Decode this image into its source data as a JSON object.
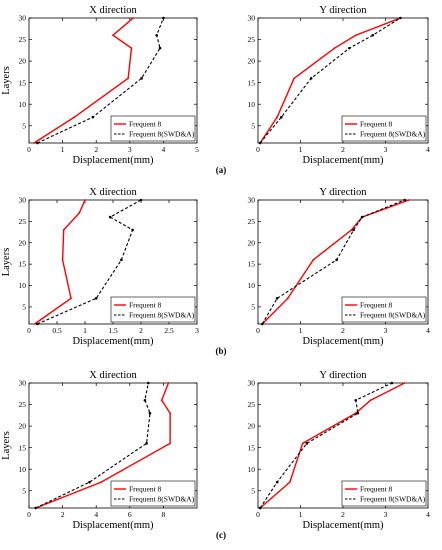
{
  "figure": {
    "row_labels": [
      "(a)",
      "(b)",
      "(c)"
    ]
  },
  "chart_data": [
    {
      "type": "line",
      "row": 0,
      "col": 0,
      "title": "X direction",
      "xlabel": "Displacement(mm)",
      "ylabel": "Layers",
      "xlim": [
        0,
        5
      ],
      "ylim": [
        1,
        30
      ],
      "xticks": [
        0,
        1,
        2,
        3,
        4,
        5
      ],
      "yticks": [
        5,
        10,
        15,
        20,
        25,
        30
      ],
      "legend_position": "bottom-right",
      "series": [
        {
          "name": "Frequent 8",
          "color": "#ff0000",
          "dashed": false,
          "x": [
            0.15,
            1.35,
            2.95,
            3.05,
            2.5,
            3.1
          ],
          "y": [
            1,
            7,
            16,
            23,
            26,
            30
          ]
        },
        {
          "name": "Frequent 8(SWD&A)",
          "color": "#000000",
          "dashed": true,
          "x": [
            0.25,
            1.9,
            3.35,
            3.9,
            3.8,
            4.0
          ],
          "y": [
            1,
            7,
            16,
            23,
            26,
            30
          ]
        }
      ]
    },
    {
      "type": "line",
      "row": 0,
      "col": 1,
      "title": "Y direction",
      "xlabel": "Displacement(mm)",
      "ylabel": "",
      "xlim": [
        0,
        4
      ],
      "ylim": [
        1,
        30
      ],
      "xticks": [
        0,
        1,
        2,
        3,
        4
      ],
      "yticks": [
        5,
        10,
        15,
        20,
        25,
        30
      ],
      "legend_position": "bottom-right",
      "series": [
        {
          "name": "Frequent 8",
          "color": "#ff0000",
          "dashed": false,
          "x": [
            0.05,
            0.45,
            0.85,
            1.8,
            2.3,
            3.35
          ],
          "y": [
            1,
            7,
            16,
            23,
            26,
            30
          ]
        },
        {
          "name": "Frequent 8(SWD&A)",
          "color": "#000000",
          "dashed": true,
          "x": [
            0.05,
            0.55,
            1.25,
            2.15,
            2.7,
            3.35
          ],
          "y": [
            1,
            7,
            16,
            23,
            26,
            30
          ]
        }
      ]
    },
    {
      "type": "line",
      "row": 1,
      "col": 0,
      "title": "X direction",
      "xlabel": "Displacement(mm)",
      "ylabel": "Layers",
      "xlim": [
        0,
        3
      ],
      "ylim": [
        1,
        30
      ],
      "xticks": [
        0,
        0.5,
        1,
        1.5,
        2,
        2.5,
        3
      ],
      "yticks": [
        5,
        10,
        15,
        20,
        25,
        30
      ],
      "legend_position": "bottom-right",
      "series": [
        {
          "name": "Frequent 8",
          "color": "#ff0000",
          "dashed": false,
          "x": [
            0.1,
            0.75,
            0.6,
            0.62,
            0.9,
            1.0
          ],
          "y": [
            1,
            7,
            16,
            23,
            27,
            30
          ]
        },
        {
          "name": "Frequent 8(SWD&A)",
          "color": "#000000",
          "dashed": true,
          "x": [
            0.15,
            1.2,
            1.65,
            1.85,
            1.45,
            2.0
          ],
          "y": [
            1,
            7,
            16,
            23,
            26,
            30
          ]
        }
      ]
    },
    {
      "type": "line",
      "row": 1,
      "col": 1,
      "title": "Y direction",
      "xlabel": "Displacement(mm)",
      "ylabel": "",
      "xlim": [
        0,
        4
      ],
      "ylim": [
        1,
        30
      ],
      "xticks": [
        0,
        1,
        2,
        3,
        4
      ],
      "yticks": [
        5,
        10,
        15,
        20,
        25,
        30
      ],
      "legend_position": "bottom-right",
      "series": [
        {
          "name": "Frequent 8",
          "color": "#ff0000",
          "dashed": false,
          "x": [
            0.1,
            0.7,
            1.3,
            2.2,
            2.45,
            3.55
          ],
          "y": [
            1,
            7,
            16,
            23,
            26,
            30
          ]
        },
        {
          "name": "Frequent 8(SWD&A)",
          "color": "#000000",
          "dashed": true,
          "x": [
            0.1,
            0.45,
            1.85,
            2.25,
            2.45,
            3.45
          ],
          "y": [
            1,
            7,
            16,
            23,
            26,
            30
          ]
        }
      ]
    },
    {
      "type": "line",
      "row": 2,
      "col": 0,
      "title": "X direction",
      "xlabel": "Displacement(mm)",
      "ylabel": "Layers",
      "xlim": [
        0,
        10
      ],
      "ylim": [
        1,
        30
      ],
      "xticks": [
        0,
        2,
        4,
        6,
        8
      ],
      "yticks": [
        5,
        10,
        15,
        20,
        25,
        30
      ],
      "legend_position": "bottom-right",
      "series": [
        {
          "name": "Frequent 8",
          "color": "#ff0000",
          "dashed": false,
          "x": [
            0.4,
            4.3,
            8.4,
            8.4,
            7.9,
            8.3
          ],
          "y": [
            1,
            7,
            16,
            23,
            26,
            30
          ]
        },
        {
          "name": "Frequent 8(SWD&A)",
          "color": "#000000",
          "dashed": true,
          "x": [
            0.4,
            3.6,
            7.0,
            7.2,
            6.9,
            7.1
          ],
          "y": [
            1,
            7,
            16,
            23,
            26,
            30
          ]
        }
      ]
    },
    {
      "type": "line",
      "row": 2,
      "col": 1,
      "title": "Y direction",
      "xlabel": "Displacement(mm)",
      "ylabel": "",
      "xlim": [
        0,
        4
      ],
      "ylim": [
        1,
        30
      ],
      "xticks": [
        0,
        1,
        2,
        3,
        4
      ],
      "yticks": [
        5,
        10,
        15,
        20,
        25,
        30
      ],
      "legend_position": "bottom-right",
      "series": [
        {
          "name": "Frequent 8",
          "color": "#ff0000",
          "dashed": false,
          "x": [
            0.05,
            0.75,
            1.05,
            2.3,
            2.65,
            3.45
          ],
          "y": [
            1,
            7,
            16,
            23,
            26,
            30
          ]
        },
        {
          "name": "Frequent 8(SWD&A)",
          "color": "#000000",
          "dashed": true,
          "x": [
            0.05,
            0.45,
            1.15,
            2.35,
            2.3,
            3.15
          ],
          "y": [
            1,
            7,
            16,
            23,
            26,
            30
          ]
        }
      ]
    }
  ]
}
